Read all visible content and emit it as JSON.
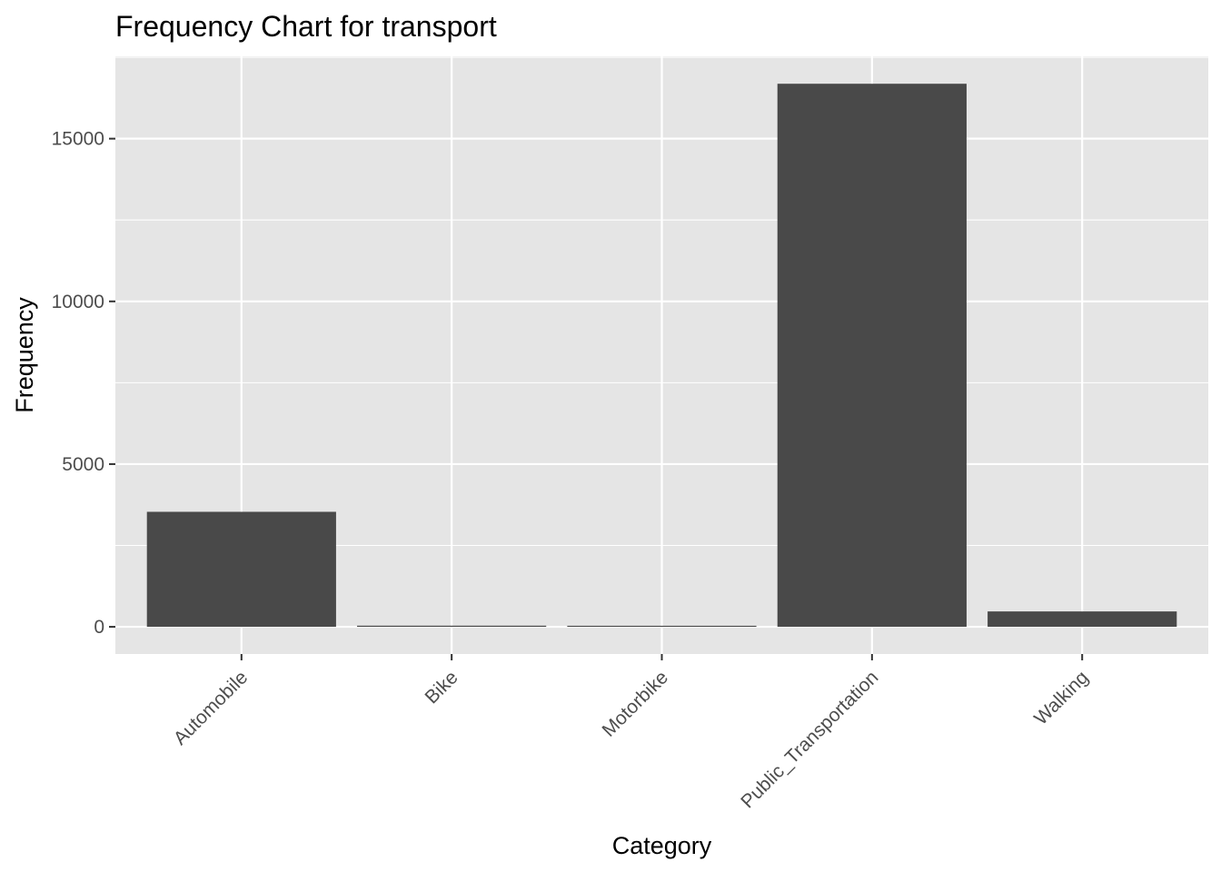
{
  "chart_data": {
    "type": "bar",
    "title": "Frequency Chart for transport",
    "xlabel": "Category",
    "ylabel": "Frequency",
    "categories": [
      "Automobile",
      "Bike",
      "Motorbike",
      "Public_Transportation",
      "Walking"
    ],
    "values": [
      3534,
      35,
      32,
      16687,
      473
    ],
    "ylim": [
      -835,
      17530
    ],
    "yticks": [
      0,
      5000,
      10000,
      15000
    ],
    "ytick_labels": [
      "0",
      "5000",
      "10000",
      "15000"
    ],
    "grid": true,
    "legend": "none",
    "colors": {
      "bar": "#494949",
      "panel": "#e5e5e5",
      "grid": "#ffffff",
      "tick_text": "#4d4d4d",
      "text": "#000000"
    }
  }
}
